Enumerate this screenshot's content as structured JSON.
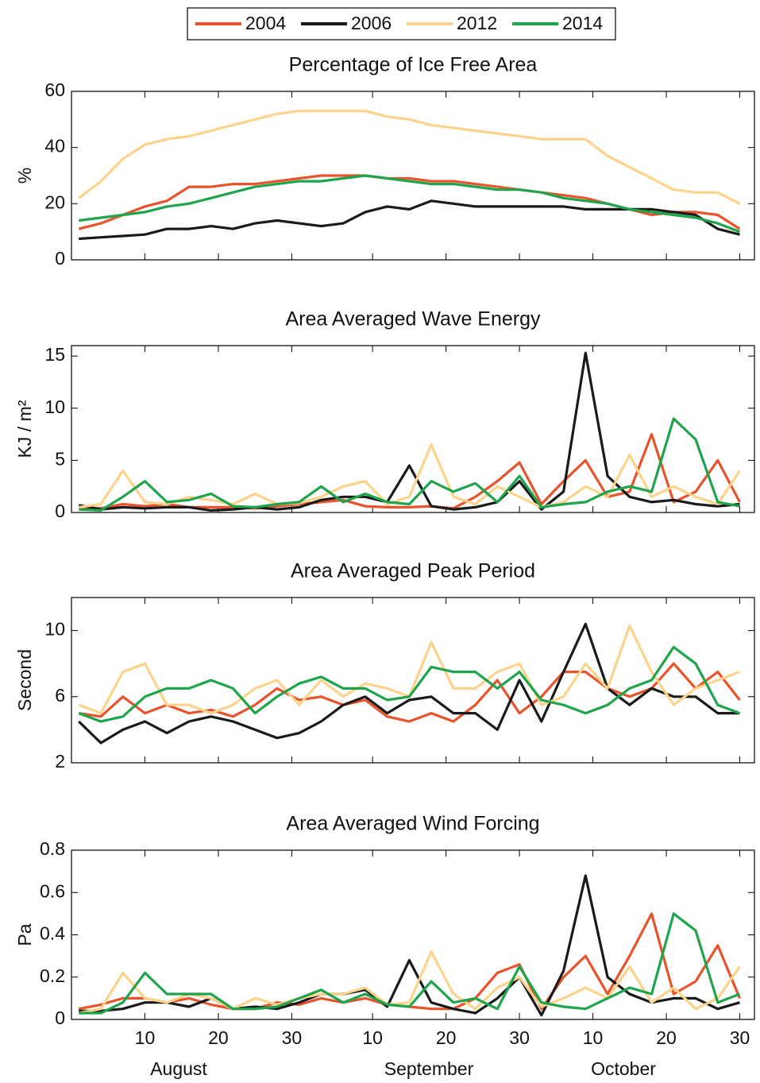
{
  "chart_data": [
    {
      "type": "line",
      "title": "Percentage of Ice Free Area",
      "ylabel": "%",
      "x": [
        1,
        4,
        7,
        10,
        13,
        16,
        19,
        22,
        25,
        28,
        31,
        34,
        37,
        40,
        43,
        46,
        49,
        52,
        55,
        58,
        61,
        64,
        67,
        70,
        73,
        76,
        79,
        82,
        85,
        88,
        91
      ],
      "xlim": [
        0,
        93
      ],
      "ylim": [
        0,
        60
      ],
      "yticks": [
        0,
        20,
        40,
        60
      ],
      "series": [
        {
          "name": "2004",
          "color": "#e8532b",
          "values": [
            11,
            13,
            16,
            19,
            21,
            26,
            26,
            27,
            27,
            28,
            29,
            30,
            30,
            30,
            29,
            29,
            28,
            28,
            27,
            26,
            25,
            24,
            23,
            22,
            20,
            18,
            16,
            17,
            17,
            16,
            11
          ]
        },
        {
          "name": "2006",
          "color": "#1a1a1a",
          "values": [
            7.5,
            8,
            8.5,
            9,
            11,
            11,
            12,
            11,
            13,
            14,
            13,
            12,
            13,
            17,
            19,
            18,
            21,
            20,
            19,
            19,
            19,
            19,
            19,
            18,
            18,
            18,
            18,
            17,
            16,
            11,
            9
          ]
        },
        {
          "name": "2012",
          "color": "#fdd28a",
          "values": [
            22,
            28,
            36,
            41,
            43,
            44,
            46,
            48,
            50,
            52,
            53,
            53,
            53,
            53,
            51,
            50,
            48,
            47,
            46,
            45,
            44,
            43,
            43,
            43,
            37,
            33,
            29,
            25,
            24,
            24,
            20
          ]
        },
        {
          "name": "2014",
          "color": "#1ea44b",
          "values": [
            14,
            15,
            16,
            17,
            19,
            20,
            22,
            24,
            26,
            27,
            28,
            28,
            29,
            30,
            29,
            28,
            27,
            27,
            26,
            25,
            25,
            24,
            22,
            21,
            20,
            18,
            17,
            16,
            15,
            13,
            10
          ]
        }
      ]
    },
    {
      "type": "line",
      "title": "Area Averaged Wave Energy",
      "ylabel": "KJ / m²",
      "x": [
        1,
        4,
        7,
        10,
        13,
        16,
        19,
        22,
        25,
        28,
        31,
        34,
        37,
        40,
        43,
        46,
        49,
        52,
        55,
        58,
        61,
        64,
        67,
        70,
        73,
        76,
        79,
        82,
        85,
        88,
        91
      ],
      "xlim": [
        0,
        93
      ],
      "ylim": [
        0,
        16
      ],
      "yticks": [
        0,
        5,
        10,
        15
      ],
      "series": [
        {
          "name": "2004",
          "color": "#e8532b",
          "values": [
            0.5,
            0.4,
            0.8,
            0.6,
            0.8,
            0.5,
            0.5,
            0.5,
            0.4,
            0.6,
            0.8,
            1.0,
            1.2,
            0.6,
            0.5,
            0.5,
            0.6,
            0.4,
            1.5,
            3.0,
            4.8,
            0.8,
            3.0,
            5.0,
            1.5,
            2.0,
            7.5,
            1.0,
            2.0,
            5.0,
            1.0
          ]
        },
        {
          "name": "2006",
          "color": "#1a1a1a",
          "values": [
            0.7,
            0.3,
            0.5,
            0.4,
            0.5,
            0.5,
            0.2,
            0.3,
            0.5,
            0.3,
            0.5,
            1.2,
            1.5,
            1.5,
            1.0,
            4.5,
            0.6,
            0.3,
            0.5,
            1.0,
            3.0,
            0.3,
            2.0,
            15.3,
            3.5,
            1.5,
            1.0,
            1.2,
            0.8,
            0.6,
            0.8
          ]
        },
        {
          "name": "2012",
          "color": "#fdd28a",
          "values": [
            0.5,
            0.8,
            4.0,
            1.0,
            0.8,
            1.5,
            1.2,
            0.8,
            1.8,
            0.8,
            0.9,
            1.5,
            2.5,
            3.0,
            0.8,
            1.5,
            6.5,
            1.5,
            0.8,
            2.5,
            1.5,
            0.5,
            1.0,
            2.5,
            1.5,
            5.5,
            1.5,
            2.5,
            1.5,
            0.8,
            4.0
          ]
        },
        {
          "name": "2014",
          "color": "#1ea44b",
          "values": [
            0.3,
            0.2,
            1.5,
            3.0,
            1.0,
            1.2,
            1.8,
            0.6,
            0.5,
            0.8,
            1.0,
            2.5,
            1.0,
            1.8,
            1.0,
            0.8,
            3.0,
            2.0,
            2.8,
            1.0,
            3.5,
            0.5,
            0.8,
            1.0,
            2.0,
            2.5,
            2.0,
            9.0,
            7.0,
            1.0,
            0.6
          ]
        }
      ]
    },
    {
      "type": "line",
      "title": "Area Averaged Peak Period",
      "ylabel": "Second",
      "x": [
        1,
        4,
        7,
        10,
        13,
        16,
        19,
        22,
        25,
        28,
        31,
        34,
        37,
        40,
        43,
        46,
        49,
        52,
        55,
        58,
        61,
        64,
        67,
        70,
        73,
        76,
        79,
        82,
        85,
        88,
        91
      ],
      "xlim": [
        0,
        93
      ],
      "ylim": [
        2,
        12
      ],
      "yticks": [
        2,
        6,
        10
      ],
      "series": [
        {
          "name": "2004",
          "color": "#e8532b",
          "values": [
            5.0,
            4.8,
            6.0,
            5.0,
            5.5,
            5.0,
            5.2,
            4.8,
            5.5,
            6.5,
            5.8,
            6.0,
            5.5,
            5.8,
            4.8,
            4.5,
            5.0,
            4.5,
            5.5,
            7.0,
            5.0,
            6.0,
            7.5,
            7.5,
            6.5,
            6.0,
            6.5,
            8.0,
            6.5,
            7.5,
            5.8
          ]
        },
        {
          "name": "2006",
          "color": "#1a1a1a",
          "values": [
            4.5,
            3.2,
            4.0,
            4.5,
            3.8,
            4.5,
            4.8,
            4.5,
            4.0,
            3.5,
            3.8,
            4.5,
            5.5,
            6.0,
            5.0,
            5.8,
            6.0,
            5.0,
            5.0,
            4.0,
            7.0,
            4.5,
            7.5,
            10.4,
            6.5,
            5.5,
            6.5,
            6.0,
            6.0,
            5.0,
            5.0
          ]
        },
        {
          "name": "2012",
          "color": "#fdd28a",
          "values": [
            5.5,
            5.0,
            7.5,
            8.0,
            5.5,
            5.5,
            5.0,
            5.5,
            6.5,
            7.0,
            5.5,
            7.0,
            6.0,
            6.8,
            6.5,
            6.0,
            9.3,
            6.5,
            6.5,
            7.5,
            8.0,
            5.5,
            6.0,
            8.0,
            6.5,
            10.3,
            7.5,
            5.5,
            6.5,
            7.0,
            7.5
          ]
        },
        {
          "name": "2014",
          "color": "#1ea44b",
          "values": [
            5.0,
            4.5,
            4.8,
            6.0,
            6.5,
            6.5,
            7.0,
            6.5,
            5.0,
            6.0,
            6.8,
            7.2,
            6.5,
            6.5,
            5.8,
            6.0,
            7.8,
            7.5,
            7.5,
            6.5,
            7.5,
            5.8,
            5.5,
            5.0,
            5.5,
            6.5,
            7.0,
            9.0,
            8.0,
            5.5,
            5.0
          ]
        }
      ]
    },
    {
      "type": "line",
      "title": "Area Averaged Wind Forcing",
      "ylabel": "Pa",
      "x": [
        1,
        4,
        7,
        10,
        13,
        16,
        19,
        22,
        25,
        28,
        31,
        34,
        37,
        40,
        43,
        46,
        49,
        52,
        55,
        58,
        61,
        64,
        67,
        70,
        73,
        76,
        79,
        82,
        85,
        88,
        91
      ],
      "xlim": [
        0,
        93
      ],
      "ylim": [
        0,
        0.8
      ],
      "yticks": [
        0,
        0.2,
        0.4,
        0.6,
        0.8
      ],
      "xticks": [
        {
          "value": 10,
          "label": "10"
        },
        {
          "value": 20,
          "label": "20"
        },
        {
          "value": 30,
          "label": "30"
        },
        {
          "value": 41,
          "label": "10"
        },
        {
          "value": 51,
          "label": "20"
        },
        {
          "value": 61,
          "label": "30"
        },
        {
          "value": 71,
          "label": "10"
        },
        {
          "value": 81,
          "label": "20"
        },
        {
          "value": 91,
          "label": "30"
        }
      ],
      "months": [
        "August",
        "September",
        "October"
      ],
      "series": [
        {
          "name": "2004",
          "color": "#e8532b",
          "values": [
            0.05,
            0.07,
            0.1,
            0.1,
            0.08,
            0.1,
            0.07,
            0.05,
            0.05,
            0.08,
            0.07,
            0.1,
            0.08,
            0.1,
            0.07,
            0.06,
            0.05,
            0.05,
            0.1,
            0.22,
            0.26,
            0.05,
            0.2,
            0.3,
            0.12,
            0.3,
            0.5,
            0.12,
            0.18,
            0.35,
            0.1
          ]
        },
        {
          "name": "2006",
          "color": "#1a1a1a",
          "values": [
            0.04,
            0.04,
            0.05,
            0.08,
            0.08,
            0.06,
            0.1,
            0.05,
            0.06,
            0.05,
            0.08,
            0.12,
            0.12,
            0.14,
            0.06,
            0.28,
            0.08,
            0.05,
            0.03,
            0.1,
            0.2,
            0.02,
            0.23,
            0.68,
            0.2,
            0.12,
            0.08,
            0.1,
            0.1,
            0.05,
            0.08
          ]
        },
        {
          "name": "2012",
          "color": "#fdd28a",
          "values": [
            0.03,
            0.05,
            0.22,
            0.1,
            0.08,
            0.12,
            0.1,
            0.05,
            0.1,
            0.07,
            0.1,
            0.12,
            0.12,
            0.15,
            0.07,
            0.08,
            0.32,
            0.12,
            0.05,
            0.15,
            0.2,
            0.06,
            0.1,
            0.15,
            0.1,
            0.25,
            0.08,
            0.15,
            0.05,
            0.1,
            0.25
          ]
        },
        {
          "name": "2014",
          "color": "#1ea44b",
          "values": [
            0.03,
            0.03,
            0.08,
            0.22,
            0.12,
            0.12,
            0.12,
            0.05,
            0.05,
            0.06,
            0.1,
            0.14,
            0.08,
            0.12,
            0.07,
            0.06,
            0.18,
            0.08,
            0.1,
            0.05,
            0.25,
            0.08,
            0.06,
            0.05,
            0.1,
            0.15,
            0.12,
            0.5,
            0.42,
            0.08,
            0.12
          ]
        }
      ]
    }
  ]
}
